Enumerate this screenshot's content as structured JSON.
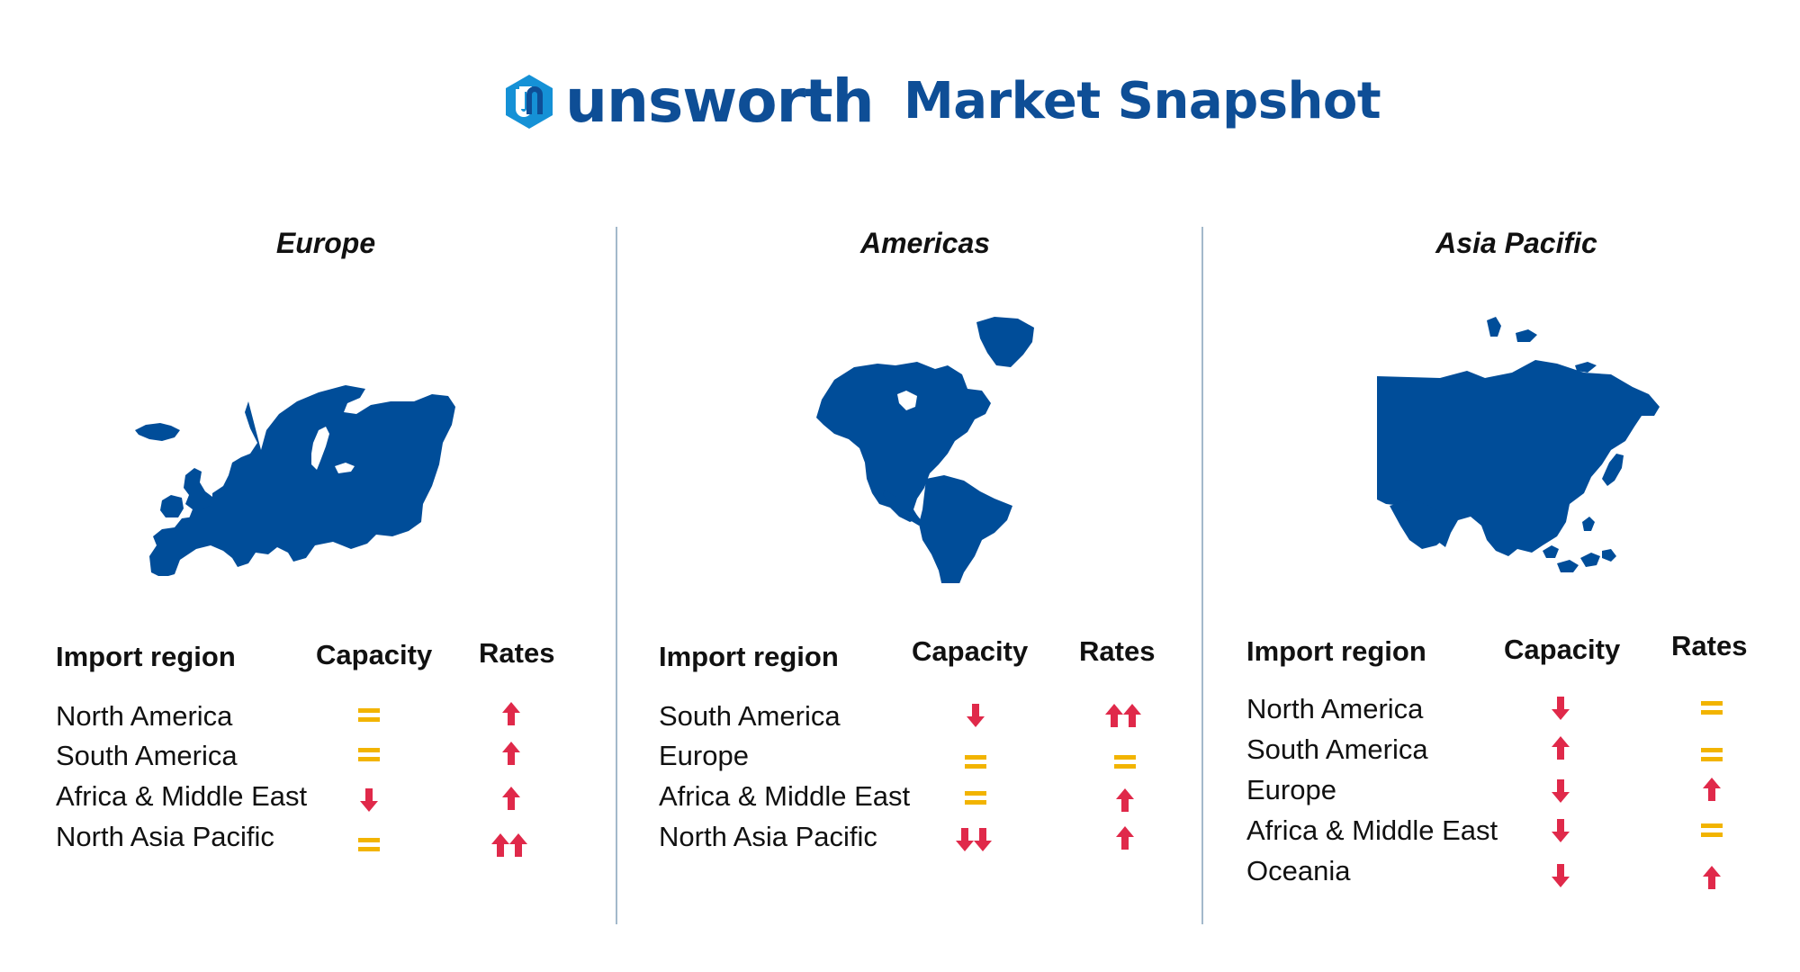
{
  "header": {
    "brand": "unsworth",
    "title": "Market Snapshot"
  },
  "colors": {
    "brand_blue": "#0e4e96",
    "map_blue": "#004d99",
    "up_down_red": "#e0294a",
    "equal_yellow": "#f2b400",
    "divider": "#a3b9cb"
  },
  "legend_icons": {
    "up": "red up arrow",
    "double_up": "two red up arrows",
    "down": "red down arrow",
    "double_down": "two red down arrows",
    "equal": "yellow equals sign"
  },
  "columns": {
    "import_region": "Import region",
    "capacity": "Capacity",
    "rates": "Rates"
  },
  "panels": [
    {
      "region": "Europe",
      "rows": [
        {
          "label": "North America",
          "capacity": "equal",
          "rates": "up"
        },
        {
          "label": "South America",
          "capacity": "equal",
          "rates": "up"
        },
        {
          "label": "Africa & Middle East",
          "capacity": "down",
          "rates": "up"
        },
        {
          "label": "North Asia Pacific",
          "capacity": "equal",
          "rates": "double_up"
        }
      ]
    },
    {
      "region": "Americas",
      "rows": [
        {
          "label": "South America",
          "capacity": "down",
          "rates": "double_up"
        },
        {
          "label": "Europe",
          "capacity": "equal",
          "rates": "equal"
        },
        {
          "label": "Africa & Middle East",
          "capacity": "equal",
          "rates": "up"
        },
        {
          "label": "North Asia Pacific",
          "capacity": "double_down",
          "rates": "up"
        }
      ]
    },
    {
      "region": "Asia Pacific",
      "rows": [
        {
          "label": "North America",
          "capacity": "down",
          "rates": "equal"
        },
        {
          "label": "South America",
          "capacity": "up",
          "rates": "equal"
        },
        {
          "label": "Europe",
          "capacity": "down",
          "rates": "up"
        },
        {
          "label": "Africa & Middle East",
          "capacity": "down",
          "rates": "equal"
        },
        {
          "label": "Oceania",
          "capacity": "down",
          "rates": "up"
        }
      ]
    }
  ]
}
